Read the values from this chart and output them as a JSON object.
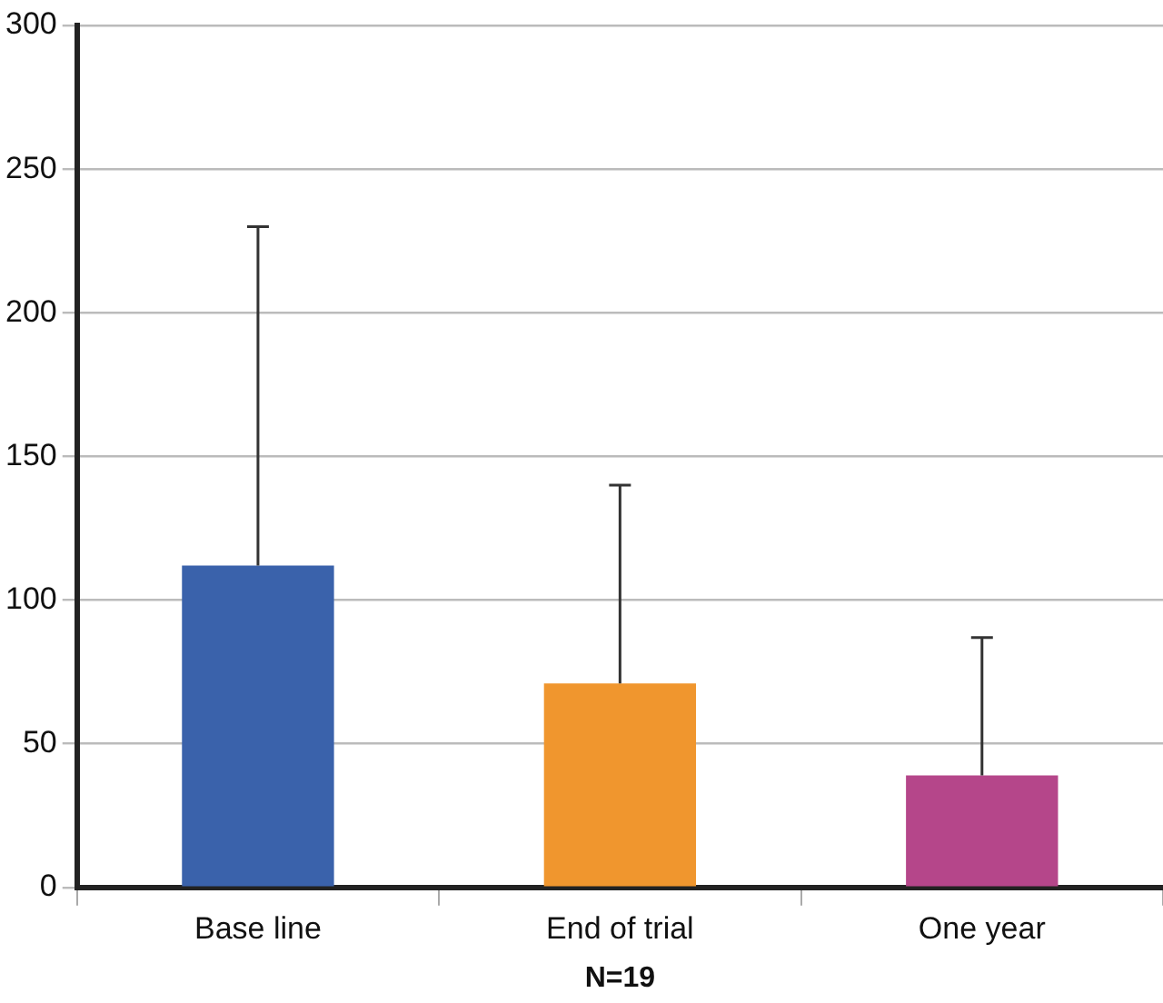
{
  "chart_data": {
    "type": "bar",
    "xlabel": "N=19",
    "categories": [
      "Base line",
      "End of trial",
      "One year"
    ],
    "values": [
      112,
      71,
      39
    ],
    "colors": [
      "#3a62ab",
      "#f0962e",
      "#b5468a"
    ],
    "errors": [
      [
        112,
        230
      ],
      [
        71,
        140
      ],
      [
        39,
        87
      ]
    ],
    "ylim": [
      0,
      300
    ],
    "yticks": [
      0,
      50,
      100,
      150,
      200,
      250,
      300
    ],
    "grid": "y",
    "legend": false
  }
}
